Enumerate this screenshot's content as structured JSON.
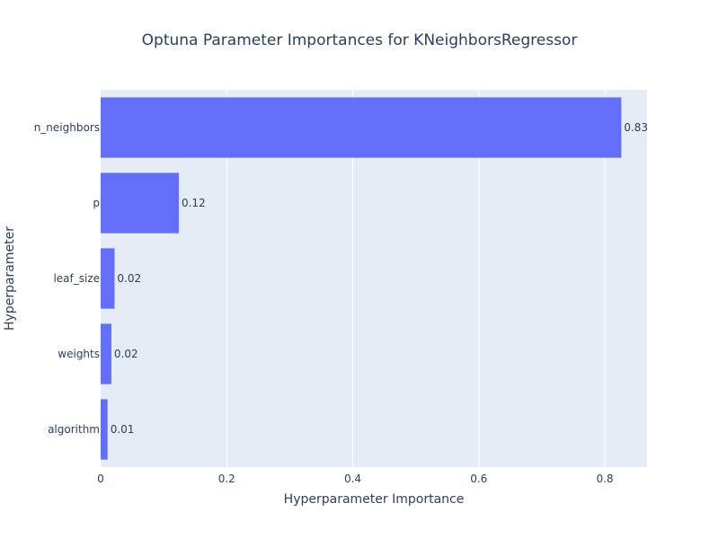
{
  "chart_data": {
    "type": "bar",
    "orientation": "horizontal",
    "title": "Optuna Parameter Importances for KNeighborsRegressor",
    "xlabel": "Hyperparameter Importance",
    "ylabel": "Hyperparameter",
    "categories": [
      "algorithm",
      "weights",
      "leaf_size",
      "p",
      "n_neighbors"
    ],
    "values": [
      0.011,
      0.017,
      0.022,
      0.124,
      0.826
    ],
    "data_labels": [
      "0.01",
      "0.02",
      "0.02",
      "0.12",
      "0.83"
    ],
    "xlim": [
      0,
      0.867
    ],
    "xticks": [
      0,
      0.2,
      0.4,
      0.6,
      0.8
    ],
    "xtick_labels": [
      "0",
      "0.2",
      "0.4",
      "0.6",
      "0.8"
    ],
    "grid": true,
    "colors": {
      "bar": "#636efa",
      "plot_bg": "#e5ecf6",
      "grid": "#ffffff",
      "text": "#2a3f5f"
    }
  }
}
